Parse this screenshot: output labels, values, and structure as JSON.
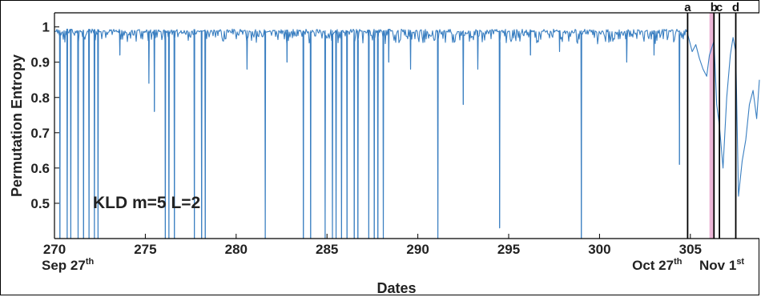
{
  "chart_data": {
    "type": "line",
    "title": "",
    "xlabel": "Dates",
    "ylabel": "Permutation Entropy",
    "xlim": [
      270,
      308.8
    ],
    "ylim": [
      0.4,
      1.04
    ],
    "xticks": [
      270,
      275,
      280,
      285,
      290,
      295,
      300,
      305
    ],
    "xtick_labels": [
      "270",
      "275",
      "280",
      "285",
      "290",
      "295",
      "300",
      "305"
    ],
    "yticks": [
      0.5,
      0.6,
      0.7,
      0.8,
      0.9,
      1
    ],
    "ytick_labels": [
      "0.5",
      "0.6",
      "0.7",
      "0.8",
      "0.9",
      "1"
    ],
    "date_labels": [
      {
        "x": 270,
        "text": "Sep 27",
        "sup": "th"
      },
      {
        "x": 302.5,
        "text": "Oct 27",
        "sup": "th"
      },
      {
        "x": 306.2,
        "text": "Nov 1",
        "sup": "st"
      }
    ],
    "annotation": "KLD m=5 L=2",
    "grid": false,
    "line_color": "#3a7fc1",
    "baseline": 0.99,
    "markers": [
      {
        "label": "a",
        "x": 304.85,
        "color": "#000000"
      },
      {
        "label": "b",
        "x": 306.3,
        "color": "#000000"
      },
      {
        "label": "c",
        "x": 306.6,
        "color": "#000000"
      },
      {
        "label": "d",
        "x": 307.5,
        "color": "#000000"
      }
    ],
    "shaded_band": {
      "x": [
        306.05,
        306.3
      ],
      "color": "#e7a8cf"
    },
    "dips": [
      {
        "x": 270.3,
        "y": 0.4
      },
      {
        "x": 270.7,
        "y": 0.4
      },
      {
        "x": 270.9,
        "y": 0.4
      },
      {
        "x": 271.3,
        "y": 0.4
      },
      {
        "x": 271.6,
        "y": 0.4
      },
      {
        "x": 271.9,
        "y": 0.4
      },
      {
        "x": 272.2,
        "y": 0.4
      },
      {
        "x": 272.4,
        "y": 0.4
      },
      {
        "x": 273.6,
        "y": 0.92
      },
      {
        "x": 275.2,
        "y": 0.84
      },
      {
        "x": 275.5,
        "y": 0.76
      },
      {
        "x": 276.1,
        "y": 0.4
      },
      {
        "x": 276.3,
        "y": 0.4
      },
      {
        "x": 276.6,
        "y": 0.4
      },
      {
        "x": 277.7,
        "y": 0.4
      },
      {
        "x": 278.1,
        "y": 0.4
      },
      {
        "x": 278.3,
        "y": 0.4
      },
      {
        "x": 280.6,
        "y": 0.88
      },
      {
        "x": 281.6,
        "y": 0.4
      },
      {
        "x": 282.8,
        "y": 0.9
      },
      {
        "x": 283.7,
        "y": 0.4
      },
      {
        "x": 284.1,
        "y": 0.4
      },
      {
        "x": 284.9,
        "y": 0.4
      },
      {
        "x": 285.3,
        "y": 0.4
      },
      {
        "x": 285.5,
        "y": 0.4
      },
      {
        "x": 285.8,
        "y": 0.4
      },
      {
        "x": 286.1,
        "y": 0.4
      },
      {
        "x": 286.5,
        "y": 0.4
      },
      {
        "x": 286.7,
        "y": 0.4
      },
      {
        "x": 287.3,
        "y": 0.4
      },
      {
        "x": 287.6,
        "y": 0.4
      },
      {
        "x": 287.8,
        "y": 0.4
      },
      {
        "x": 288.1,
        "y": 0.4
      },
      {
        "x": 288.4,
        "y": 0.9
      },
      {
        "x": 289.6,
        "y": 0.88
      },
      {
        "x": 291.1,
        "y": 0.4
      },
      {
        "x": 292.5,
        "y": 0.78
      },
      {
        "x": 293.3,
        "y": 0.88
      },
      {
        "x": 294.5,
        "y": 0.43
      },
      {
        "x": 296.2,
        "y": 0.92
      },
      {
        "x": 297.8,
        "y": 0.93
      },
      {
        "x": 299.0,
        "y": 0.4
      },
      {
        "x": 301.5,
        "y": 0.9
      },
      {
        "x": 303.0,
        "y": 0.92
      },
      {
        "x": 304.4,
        "y": 0.61
      }
    ],
    "tail": [
      {
        "x": 304.85,
        "y": 0.98
      },
      {
        "x": 305.1,
        "y": 0.93
      },
      {
        "x": 305.3,
        "y": 0.95
      },
      {
        "x": 305.5,
        "y": 0.91
      },
      {
        "x": 305.7,
        "y": 0.88
      },
      {
        "x": 305.9,
        "y": 0.86
      },
      {
        "x": 306.05,
        "y": 0.92
      },
      {
        "x": 306.3,
        "y": 0.96
      },
      {
        "x": 306.45,
        "y": 0.78
      },
      {
        "x": 306.6,
        "y": 0.72
      },
      {
        "x": 306.8,
        "y": 0.6
      },
      {
        "x": 307.0,
        "y": 0.8
      },
      {
        "x": 307.2,
        "y": 0.92
      },
      {
        "x": 307.35,
        "y": 0.97
      },
      {
        "x": 307.5,
        "y": 0.93
      },
      {
        "x": 307.65,
        "y": 0.52
      },
      {
        "x": 307.85,
        "y": 0.62
      },
      {
        "x": 308.05,
        "y": 0.68
      },
      {
        "x": 308.25,
        "y": 0.78
      },
      {
        "x": 308.45,
        "y": 0.82
      },
      {
        "x": 308.65,
        "y": 0.74
      },
      {
        "x": 308.8,
        "y": 0.85
      }
    ]
  }
}
